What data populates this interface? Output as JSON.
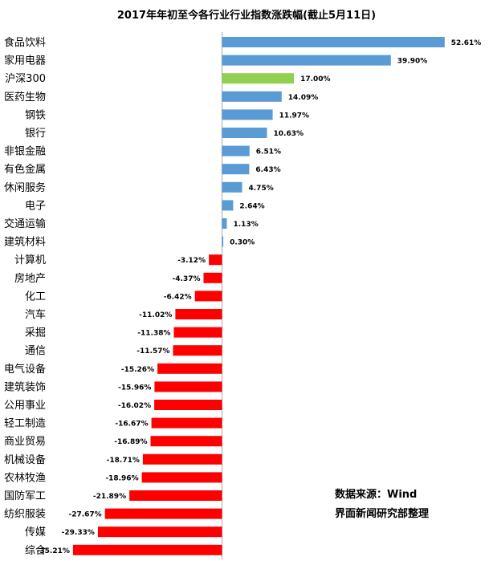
{
  "chart_data": {
    "type": "bar",
    "orientation": "horizontal",
    "title": "2017年年初至今各行业行业指数涨跌幅(截止5月11日)",
    "value_unit": "%",
    "categories": [
      "食品饮料",
      "家用电器",
      "沪深300",
      "医药生物",
      "钢铁",
      "银行",
      "非银金融",
      "有色金属",
      "休闲服务",
      "电子",
      "交通运输",
      "建筑材料",
      "计算机",
      "房地产",
      "化工",
      "汽车",
      "采掘",
      "通信",
      "电气设备",
      "建筑装饰",
      "公用事业",
      "轻工制造",
      "商业贸易",
      "机械设备",
      "农林牧渔",
      "国防军工",
      "纺织服装",
      "传媒",
      "综合"
    ],
    "values": [
      52.61,
      39.9,
      17.0,
      14.09,
      11.97,
      10.63,
      6.51,
      6.43,
      4.75,
      2.64,
      1.13,
      0.3,
      -3.12,
      -4.37,
      -6.42,
      -11.02,
      -11.38,
      -11.57,
      -15.26,
      -15.96,
      -16.02,
      -16.67,
      -16.89,
      -18.71,
      -18.96,
      -21.89,
      -27.67,
      -29.33,
      -35.21
    ],
    "value_labels": [
      "52.61%",
      "39.90%",
      "17.00%",
      "14.09%",
      "11.97%",
      "10.63%",
      "6.51%",
      "6.43%",
      "4.75%",
      "2.64%",
      "1.13%",
      "0.30%",
      "-3.12%",
      "-4.37%",
      "-6.42%",
      "-11.02%",
      "-11.38%",
      "-11.57%",
      "-15.26%",
      "-15.96%",
      "-16.02%",
      "-16.67%",
      "-16.89%",
      "-18.71%",
      "-18.96%",
      "-21.89%",
      "-27.67%",
      "-29.33%",
      "-35.21%"
    ],
    "highlight_category": "沪深300",
    "colors": {
      "positive": "#5B9BD5",
      "negative": "#FF0000",
      "highlight": "#92D050",
      "axis": "#A6A6A6"
    },
    "grid": false,
    "legend": "none"
  },
  "notes": {
    "source": "数据来源：Wind",
    "credit": "界面新闻研究部整理"
  }
}
